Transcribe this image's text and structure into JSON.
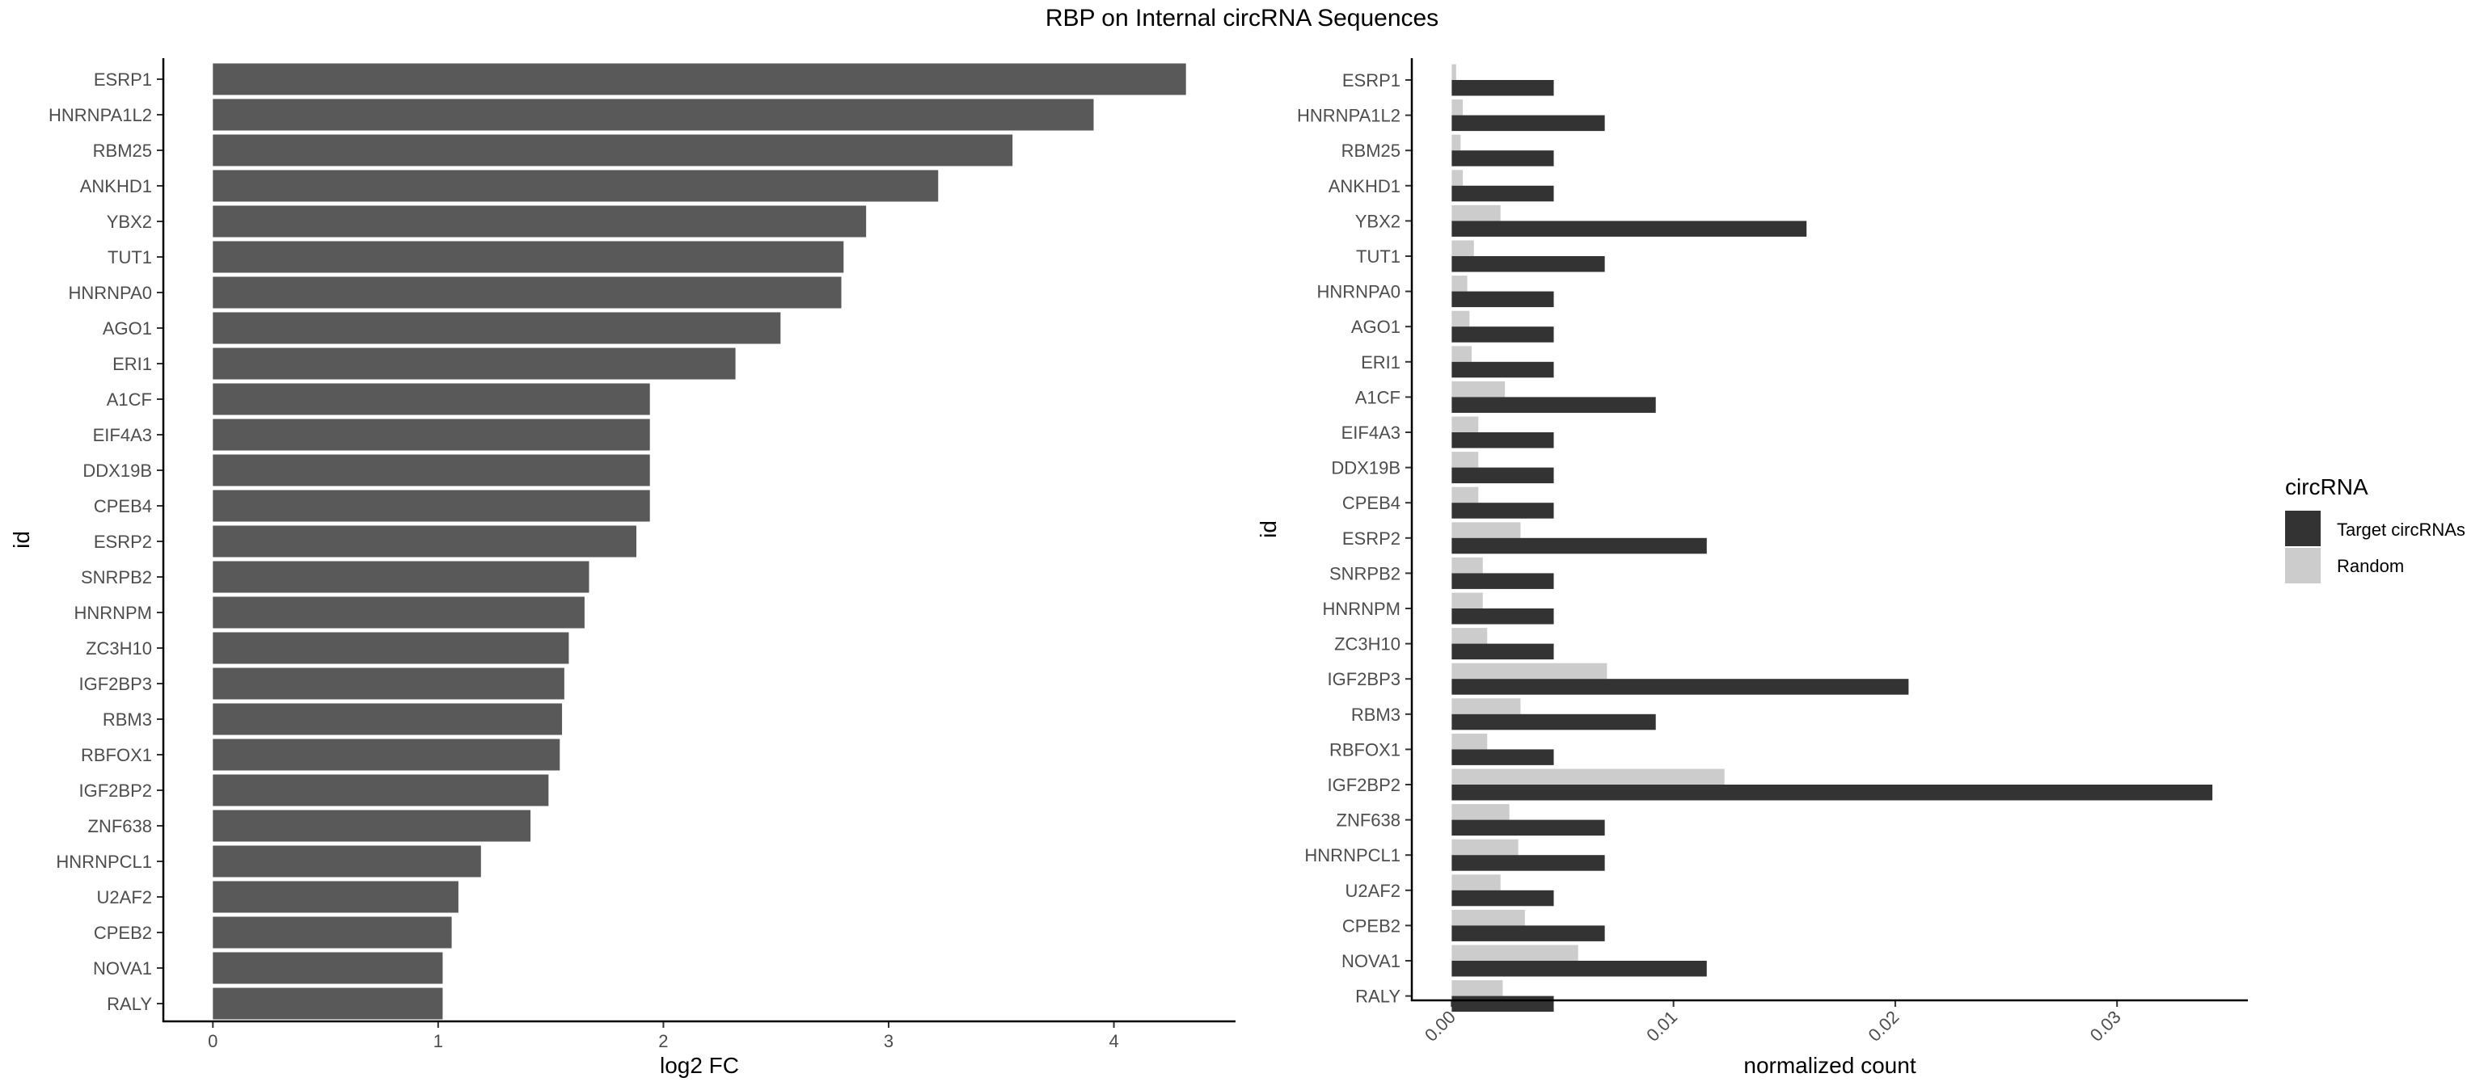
{
  "title": "RBP on Internal circRNA Sequences",
  "chart_data": [
    {
      "type": "bar",
      "orientation": "horizontal",
      "xlabel": "log2 FC",
      "ylabel": "id",
      "xlim": [
        -0.22,
        4.54
      ],
      "xticks": [
        0,
        1,
        2,
        3,
        4
      ],
      "categories": [
        "ESRP1",
        "HNRNPA1L2",
        "RBM25",
        "ANKHD1",
        "YBX2",
        "TUT1",
        "HNRNPA0",
        "AGO1",
        "ERI1",
        "A1CF",
        "EIF4A3",
        "DDX19B",
        "CPEB4",
        "ESRP2",
        "SNRPB2",
        "HNRNPM",
        "ZC3H10",
        "IGF2BP3",
        "RBM3",
        "RBFOX1",
        "IGF2BP2",
        "ZNF638",
        "HNRNPCL1",
        "U2AF2",
        "CPEB2",
        "NOVA1",
        "RALY"
      ],
      "values": [
        4.32,
        3.91,
        3.55,
        3.22,
        2.9,
        2.8,
        2.79,
        2.52,
        2.32,
        1.94,
        1.94,
        1.94,
        1.94,
        1.88,
        1.67,
        1.65,
        1.58,
        1.56,
        1.55,
        1.54,
        1.49,
        1.41,
        1.19,
        1.09,
        1.06,
        1.02,
        1.02
      ],
      "colors": {
        "bar": "#595959"
      },
      "grid": false
    },
    {
      "type": "bar",
      "orientation": "horizontal",
      "grouped": true,
      "xlabel": "normalized count",
      "ylabel": "id",
      "xlim": [
        -0.0018,
        0.0359
      ],
      "xticks": [
        0.0,
        0.01,
        0.02,
        0.03
      ],
      "xtick_labels": [
        "0.00",
        "0.01",
        "0.02",
        "0.03"
      ],
      "categories": [
        "ESRP1",
        "HNRNPA1L2",
        "RBM25",
        "ANKHD1",
        "YBX2",
        "TUT1",
        "HNRNPA0",
        "AGO1",
        "ERI1",
        "A1CF",
        "EIF4A3",
        "DDX19B",
        "CPEB4",
        "ESRP2",
        "SNRPB2",
        "HNRNPM",
        "ZC3H10",
        "IGF2BP3",
        "RBM3",
        "RBFOX1",
        "IGF2BP2",
        "ZNF638",
        "HNRNPCL1",
        "U2AF2",
        "CPEB2",
        "NOVA1",
        "RALY"
      ],
      "series": [
        {
          "name": "Target circRNAs",
          "color": "#333333",
          "values": [
            0.0046,
            0.0069,
            0.0046,
            0.0046,
            0.016,
            0.0069,
            0.0046,
            0.0046,
            0.0046,
            0.0092,
            0.0046,
            0.0046,
            0.0046,
            0.0115,
            0.0046,
            0.0046,
            0.0046,
            0.0206,
            0.0092,
            0.0046,
            0.0343,
            0.0069,
            0.0069,
            0.0046,
            0.0069,
            0.0115,
            0.0046
          ]
        },
        {
          "name": "Random",
          "color": "#cccccc",
          "values": [
            0.0002,
            0.0005,
            0.0004,
            0.0005,
            0.0022,
            0.001,
            0.0007,
            0.0008,
            0.0009,
            0.0024,
            0.0012,
            0.0012,
            0.0012,
            0.0031,
            0.0014,
            0.0014,
            0.0016,
            0.007,
            0.0031,
            0.0016,
            0.0123,
            0.0026,
            0.003,
            0.0022,
            0.0033,
            0.0057,
            0.0023
          ]
        }
      ],
      "legend": {
        "title": "circRNA",
        "position": "right"
      },
      "grid": false
    }
  ]
}
